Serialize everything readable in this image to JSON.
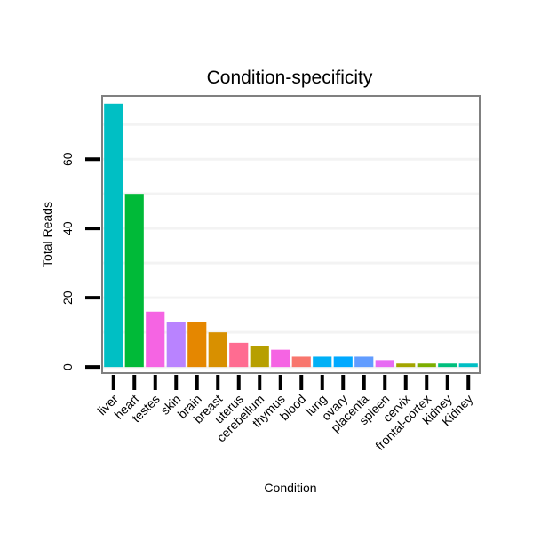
{
  "chart_data": {
    "type": "bar",
    "title": "Condition-specificity",
    "xlabel": "Condition",
    "ylabel": "Total Reads",
    "ylim": [
      -1.5,
      78
    ],
    "yticks": [
      0,
      20,
      40,
      60
    ],
    "grid": true,
    "categories": [
      "liver",
      "heart",
      "testes",
      "skin",
      "brain",
      "breast",
      "uterus",
      "cerebellum",
      "thymus",
      "blood",
      "lung",
      "ovary",
      "placenta",
      "spleen",
      "cervix",
      "frontal-cortex",
      "kidney",
      "Kidney"
    ],
    "values": [
      76,
      50,
      16,
      13,
      13,
      10,
      7,
      6,
      5,
      3,
      3,
      3,
      3,
      2,
      1,
      1,
      1,
      1
    ],
    "colors": [
      "#00BFC4",
      "#00BA38",
      "#F564E3",
      "#B983FF",
      "#E58700",
      "#D89000",
      "#FF6C91",
      "#B79F00",
      "#F564E3",
      "#F8766D",
      "#00B0F6",
      "#00A9FF",
      "#619CFF",
      "#E76BF3",
      "#A3A500",
      "#7CAE00",
      "#00BF7D",
      "#00BFC4"
    ]
  }
}
